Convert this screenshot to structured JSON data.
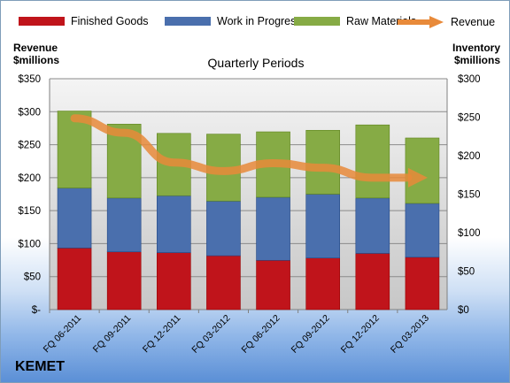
{
  "brand": "KEMET",
  "chart_data": {
    "type": "bar",
    "stacked": true,
    "title": "Quarterly Periods",
    "categories": [
      "FQ 06-2011",
      "FQ 09-2011",
      "FQ 12-2011",
      "FQ 03-2012",
      "FQ 06-2012",
      "FQ 09-2012",
      "FQ 12-2012",
      "FQ 03-2013"
    ],
    "series": [
      {
        "name": "Finished Goods",
        "axis": "right",
        "color": "#c0141b",
        "values": [
          80,
          75,
          74,
          70,
          64,
          67,
          73,
          68
        ]
      },
      {
        "name": "Work in Progress",
        "axis": "right",
        "color": "#4a6fad",
        "values": [
          78,
          70,
          74,
          71,
          82,
          83,
          72,
          70
        ]
      },
      {
        "name": "Raw Materials",
        "axis": "right",
        "color": "#86ab45",
        "values": [
          100,
          96,
          81,
          87,
          85,
          83,
          95,
          85
        ]
      }
    ],
    "line_series": {
      "name": "Revenue",
      "axis": "left",
      "color": "#e88a3a",
      "values": [
        290,
        268,
        223,
        210,
        222,
        215,
        200,
        200
      ]
    },
    "left_axis": {
      "label_line1": "Revenue",
      "label_line2": "$millions",
      "min": 0,
      "max": 350,
      "step": 50,
      "tick_labels": [
        "$-",
        "$50",
        "$100",
        "$150",
        "$200",
        "$250",
        "$300",
        "$350"
      ]
    },
    "right_axis": {
      "label_line1": "Inventory",
      "label_line2": "$millions",
      "min": 0,
      "max": 300,
      "step": 50,
      "tick_labels": [
        "$0",
        "$50",
        "$100",
        "$150",
        "$200",
        "$250",
        "$300"
      ]
    },
    "grid": true,
    "legend_position": "top"
  }
}
